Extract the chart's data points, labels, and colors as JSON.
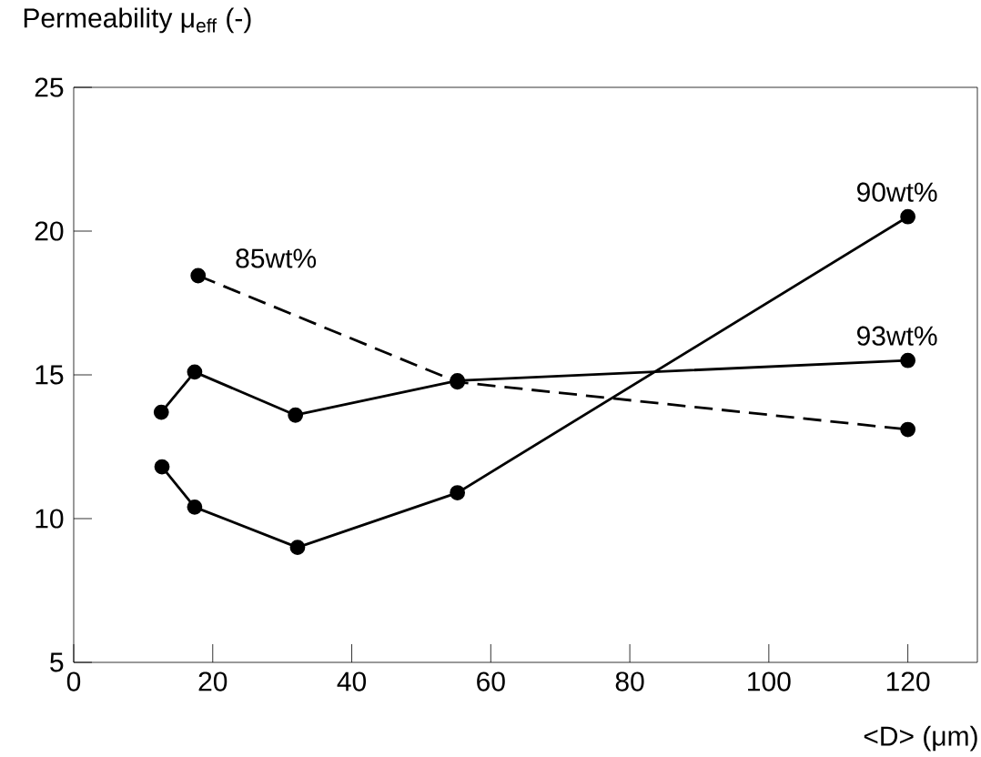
{
  "chart_data": {
    "type": "line",
    "xlabel": "<D> (μm)",
    "ylabel": "Permeability  μ$_{eff}$ (-)",
    "xlim": [
      0,
      130
    ],
    "ylim": [
      5,
      25
    ],
    "xticks": [
      0,
      20,
      40,
      60,
      80,
      100,
      120
    ],
    "yticks": [
      5,
      10,
      15,
      20,
      25
    ],
    "marker": "circle",
    "grid": false,
    "series": [
      {
        "name": "85wt%",
        "color": "#000000",
        "line_style": "dashed",
        "x": [
          17.9,
          55.2,
          120
        ],
        "values": [
          18.45,
          14.75,
          13.1
        ]
      },
      {
        "name": "90wt%",
        "color": "#000000",
        "line_style": "solid",
        "x": [
          12.7,
          17.4,
          32.2,
          55.2,
          120
        ],
        "values": [
          11.8,
          10.4,
          9.0,
          10.9,
          20.5
        ]
      },
      {
        "name": "93wt%",
        "color": "#000000",
        "line_style": "solid",
        "x": [
          12.6,
          17.4,
          31.9,
          55.2,
          120
        ],
        "values": [
          13.7,
          15.1,
          13.6,
          14.8,
          15.5
        ]
      }
    ]
  }
}
